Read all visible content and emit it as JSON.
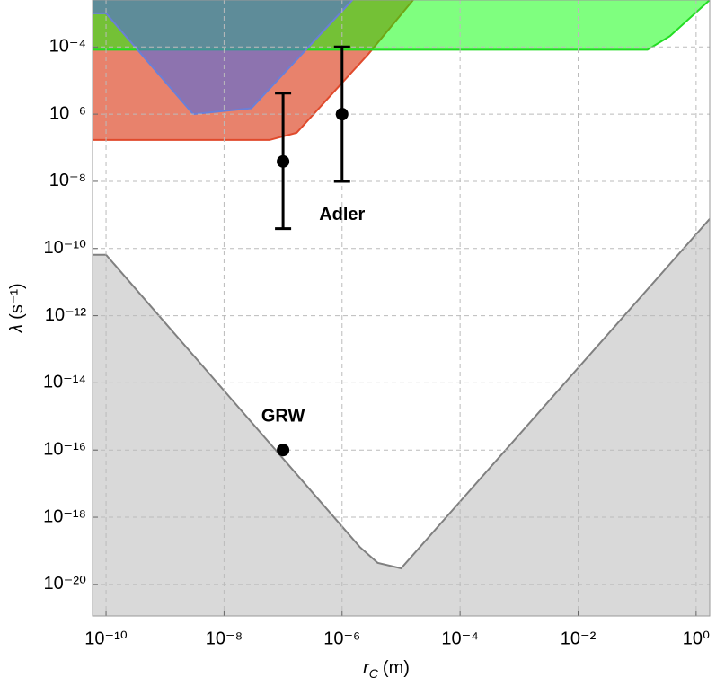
{
  "chart_data": {
    "type": "area",
    "xlog": true,
    "ylog": true,
    "grid": true,
    "xlim": [
      5.9e-11,
      1.7
    ],
    "ylim": [
      1.15e-21,
      0.0025
    ],
    "xticks": [
      {
        "value": 1e-10,
        "label": "10⁻¹⁰"
      },
      {
        "value": 1e-08,
        "label": "10⁻⁸"
      },
      {
        "value": 1e-06,
        "label": "10⁻⁶"
      },
      {
        "value": 0.0001,
        "label": "10⁻⁴"
      },
      {
        "value": 0.01,
        "label": "10⁻²"
      },
      {
        "value": 1,
        "label": "10⁰"
      }
    ],
    "yticks": [
      {
        "value": 0.0001,
        "label": "10⁻⁴"
      },
      {
        "value": 1e-06,
        "label": "10⁻⁶"
      },
      {
        "value": 1e-08,
        "label": "10⁻⁸"
      },
      {
        "value": 1e-10,
        "label": "10⁻¹⁰"
      },
      {
        "value": 1e-12,
        "label": "10⁻¹²"
      },
      {
        "value": 1e-14,
        "label": "10⁻¹⁴"
      },
      {
        "value": 1e-16,
        "label": "10⁻¹⁶"
      },
      {
        "value": 1e-18,
        "label": "10⁻¹⁸"
      },
      {
        "value": 1e-20,
        "label": "10⁻²⁰"
      }
    ],
    "xlabel": {
      "symbol": "r",
      "subscript": "C",
      "unit": "(m)"
    },
    "ylabel": {
      "symbol": "λ",
      "unit": "(s⁻¹)"
    },
    "series": [
      {
        "color": "#e8826c",
        "stroke": "#e04a2c",
        "fill_to": "top",
        "x": [
          5.9e-11,
          5.9e-08,
          1.7e-07,
          2.8e-06,
          1.6e-05
        ],
        "values": [
          1.7e-07,
          1.7e-07,
          2.8e-07,
          6.2e-05,
          0.0025
        ]
      },
      {
        "color": "rgba(0,255,0,0.5)",
        "stroke": "#22dd22",
        "fill_to": "top",
        "x": [
          5.9e-11,
          0.15,
          0.36,
          1.7
        ],
        "values": [
          8.3e-05,
          8.3e-05,
          0.00021,
          0.0025
        ]
      },
      {
        "color": "rgba(80,105,220,0.6)",
        "stroke": "#6a7fd8",
        "fill_to": "top",
        "x": [
          5.9e-11,
          1e-10,
          3e-09,
          2.9e-08,
          1.5e-06
        ],
        "values": [
          0.001,
          0.001,
          1e-06,
          1.5e-06,
          0.0025
        ]
      },
      {
        "color": "#d9d9d9",
        "stroke": "#808080",
        "fill_to": "bottom",
        "x": [
          5.9e-11,
          1e-10,
          2e-06,
          4e-06,
          1e-05,
          1.7
        ],
        "values": [
          6.5e-11,
          6.5e-11,
          1.3e-19,
          4.4e-20,
          3e-20,
          7.6e-10
        ]
      }
    ],
    "markers": [
      {
        "label": "GRW",
        "points": [
          {
            "x": 1e-07,
            "y": 1e-16
          }
        ]
      },
      {
        "label": "Adler",
        "points": [
          {
            "x": 1e-07,
            "y": 3.9e-08,
            "low": 3.9e-10,
            "high": 4.2e-06
          },
          {
            "x": 1e-06,
            "y": 1e-06,
            "low": 1e-08,
            "high": 0.0001
          }
        ]
      }
    ]
  }
}
